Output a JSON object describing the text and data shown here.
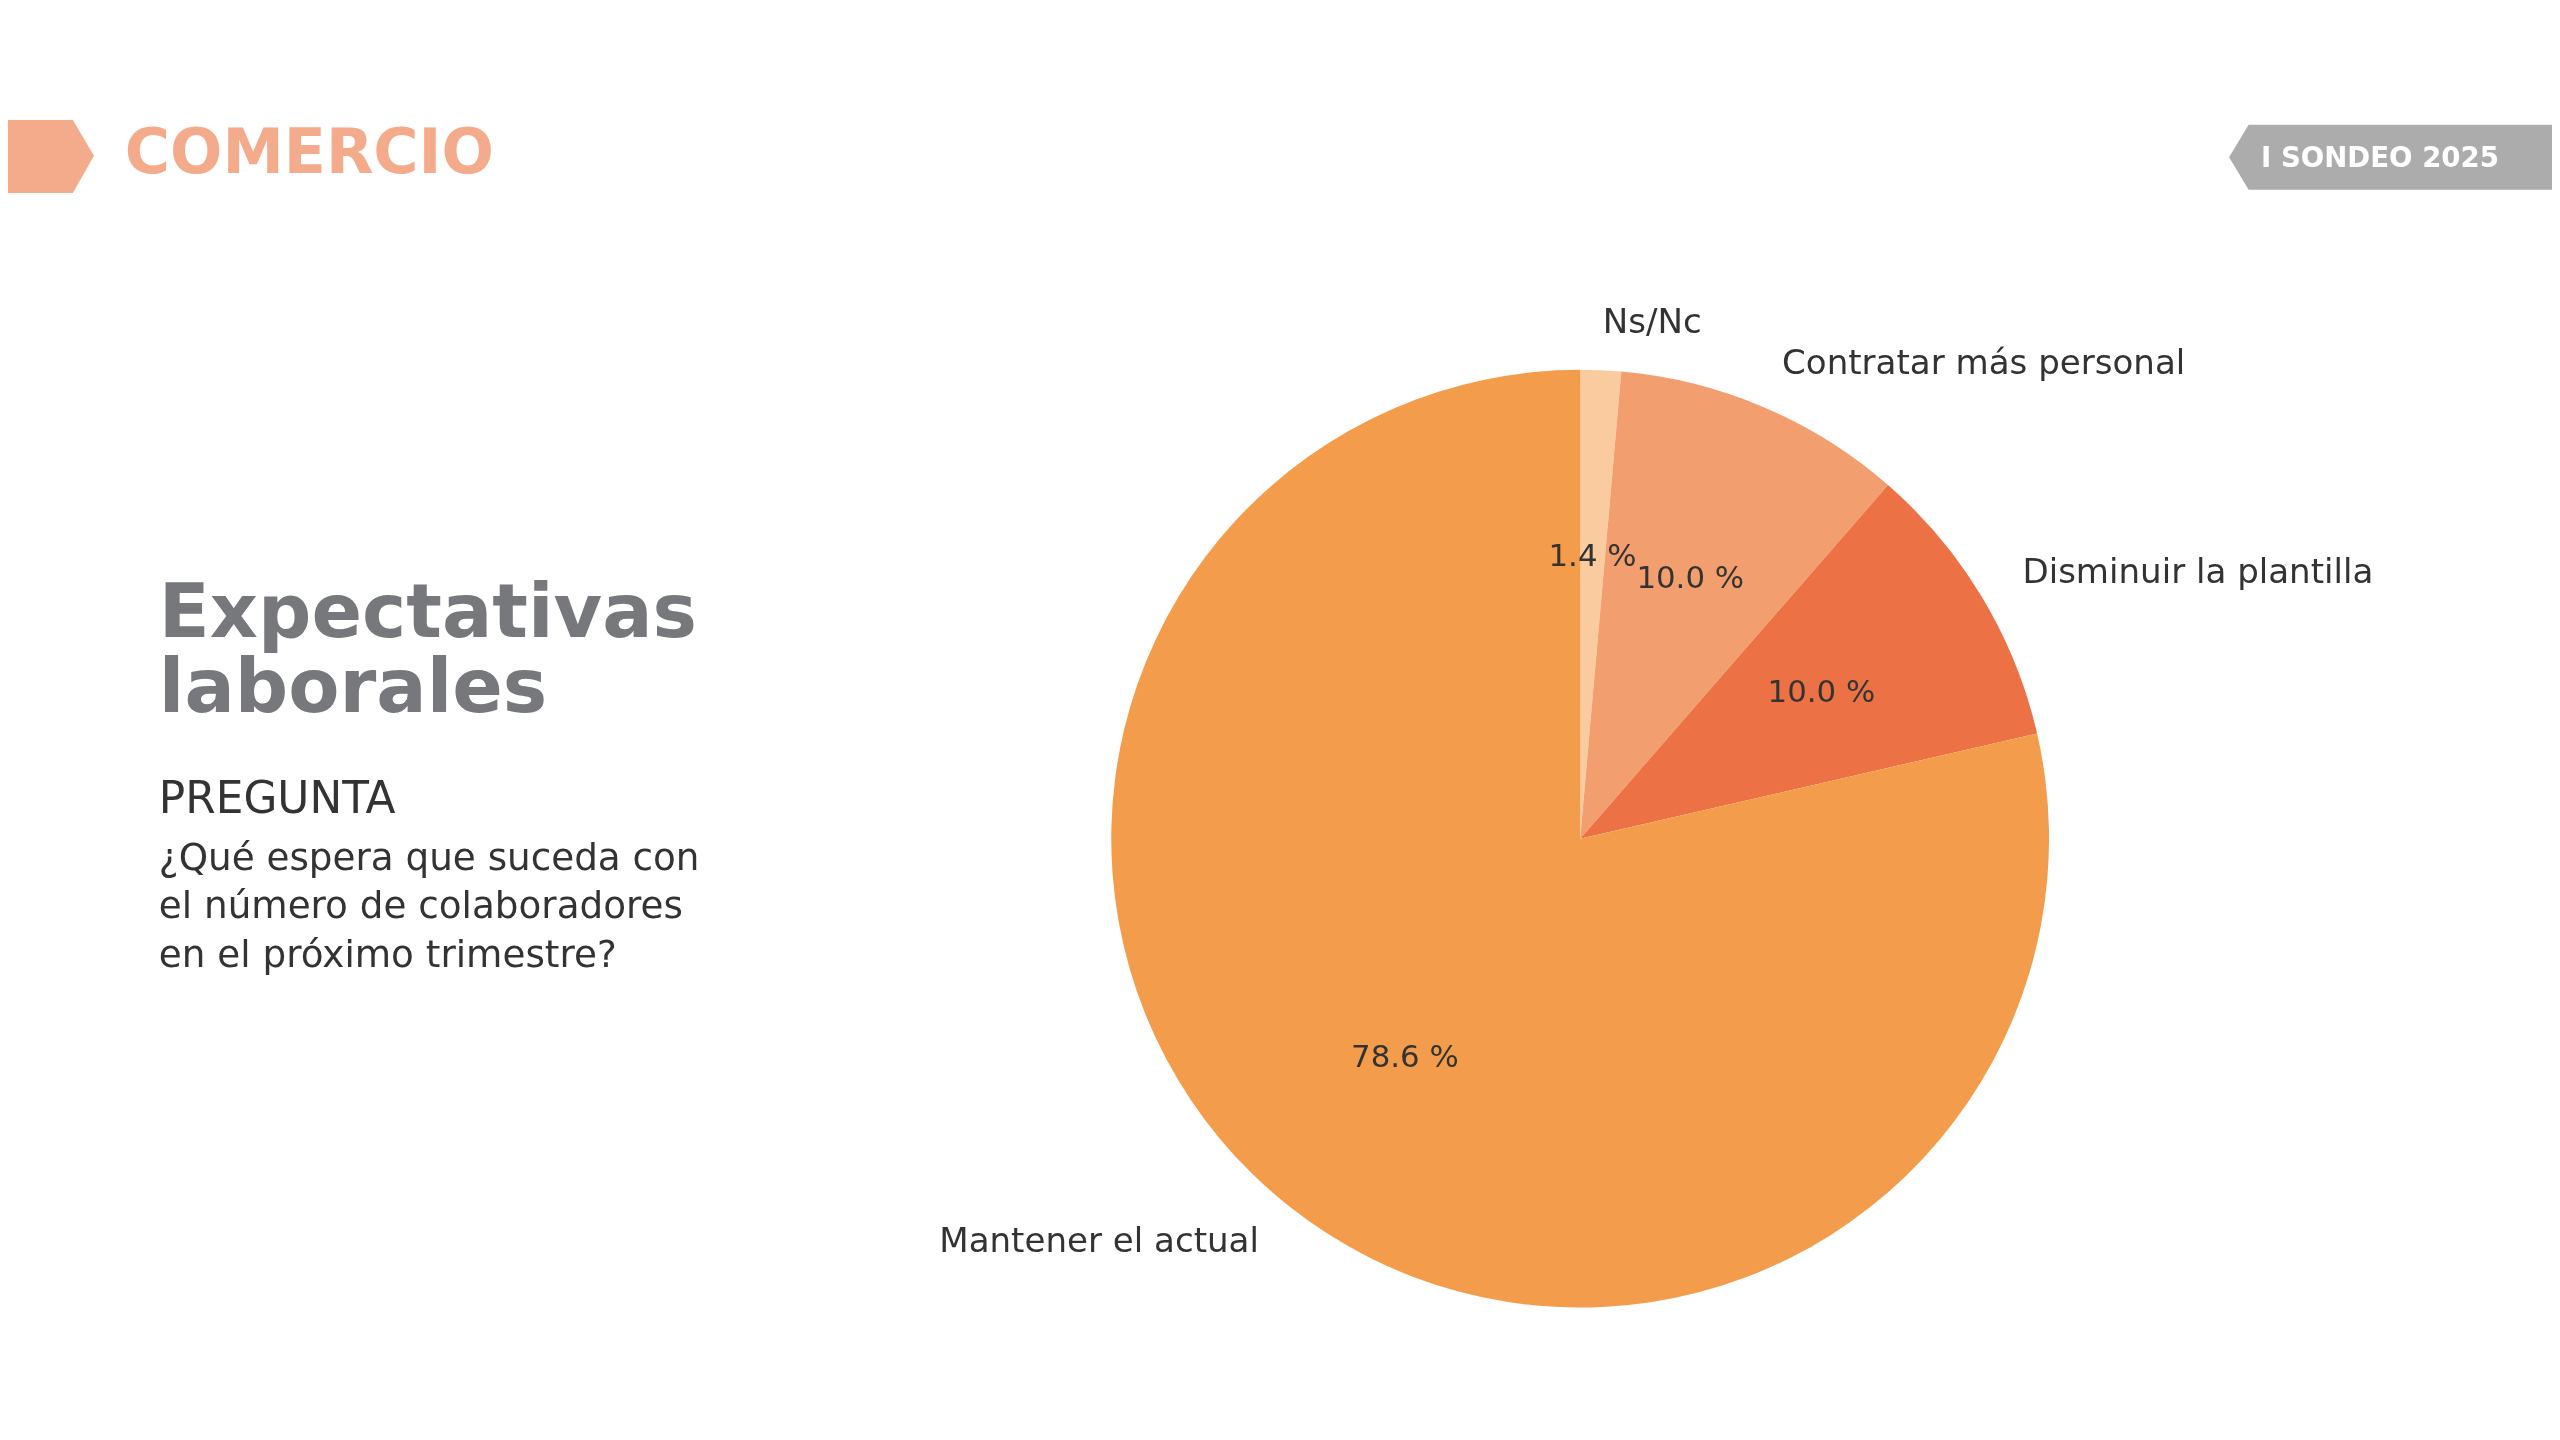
{
  "chart_data": {
    "type": "pie",
    "title": "Expectativas laborales",
    "subtitle": "PREGUNTA",
    "annotations": [
      "COMERCIO",
      "I SONDEO 2025",
      "¿Qué espera que suceda con el número de colaboradores en el próximo trimestre?"
    ],
    "categories": [
      "Ns/Nc",
      "Contratar más personal",
      "Disminuir la plantilla",
      "Mantener el actual"
    ],
    "values": [
      1.4,
      10.0,
      10.0,
      78.6
    ],
    "colors": [
      "#fbcba0",
      "#f39e6e",
      "#ec7246",
      "#f39c4b"
    ],
    "value_labels": [
      "1.4 %",
      "10.0 %",
      "10.0 %",
      "78.6 %"
    ]
  }
}
